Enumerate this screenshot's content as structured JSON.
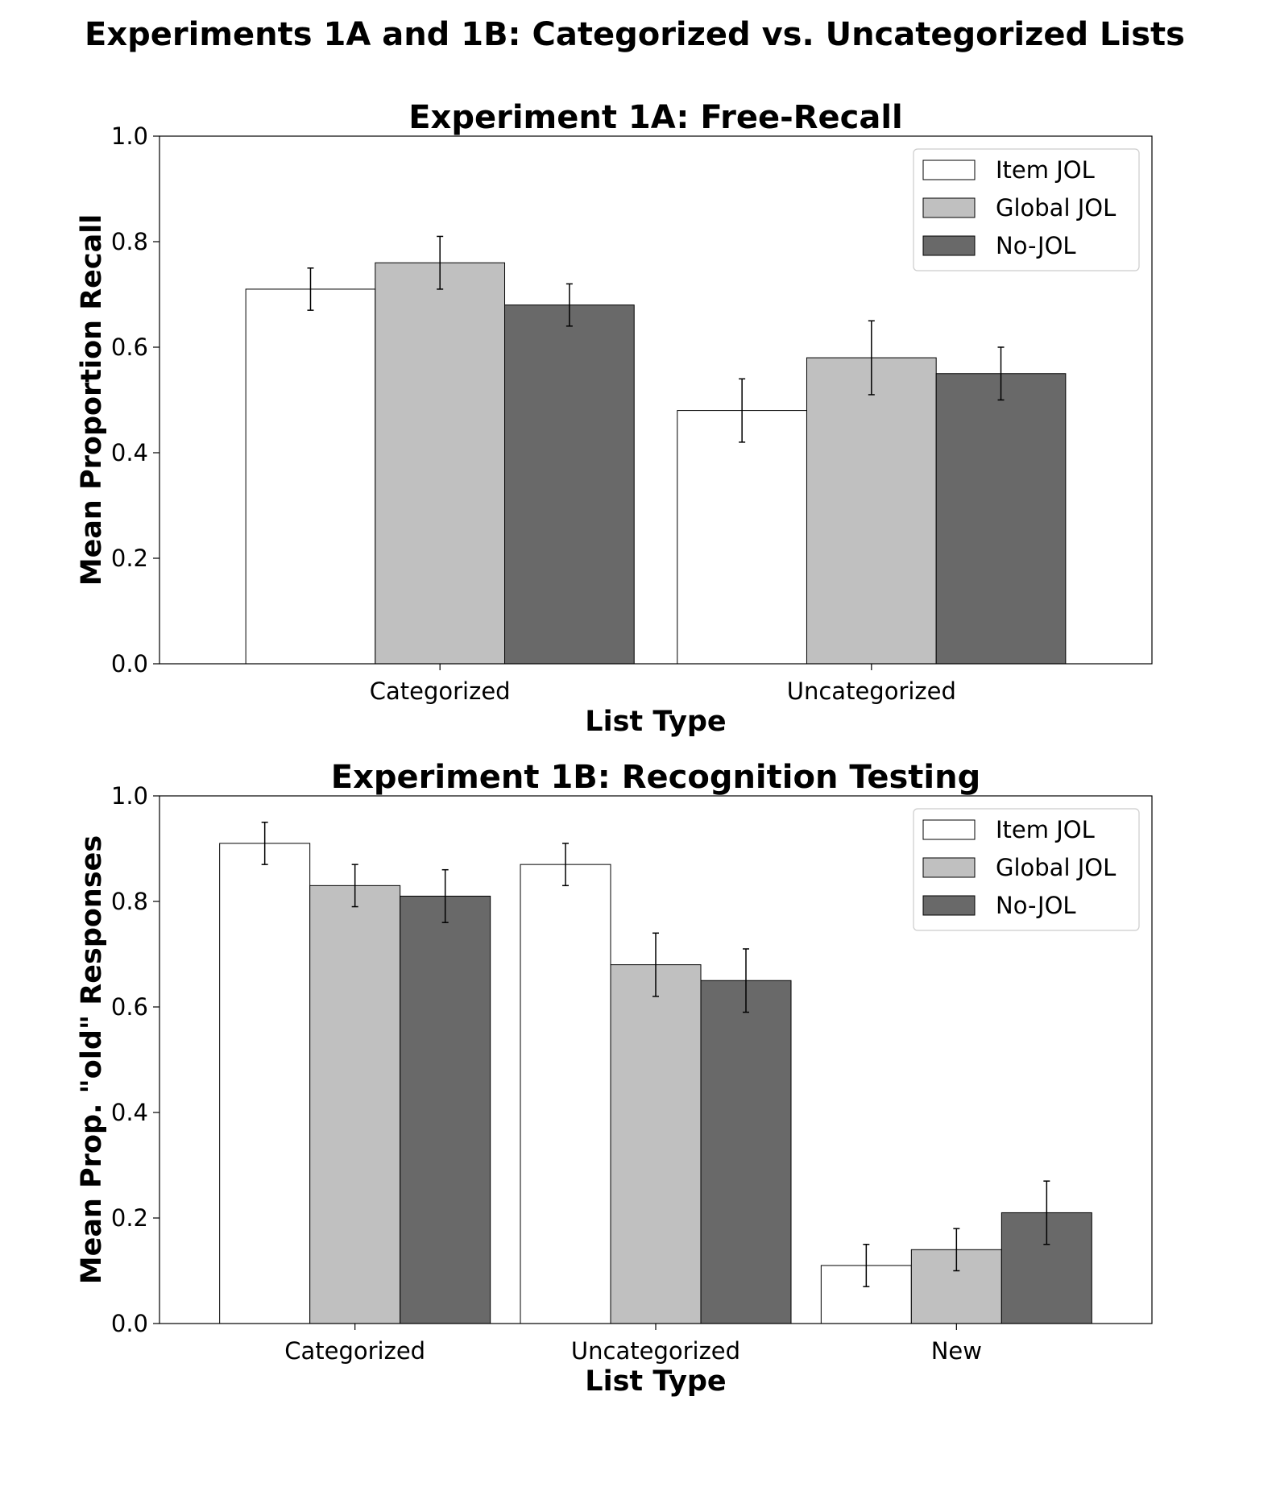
{
  "figure": {
    "title": "Experiments 1A and 1B: Categorized vs. Uncategorized Lists"
  },
  "series_colors": {
    "Item JOL": "#ffffff",
    "Global JOL": "#c0c0c0",
    "No-JOL": "#696969"
  },
  "chart_data": [
    {
      "type": "bar",
      "title": "Experiment 1A: Free-Recall",
      "xlabel": "List Type",
      "ylabel": "Mean Proportion Recall",
      "ylim": [
        0,
        1.0
      ],
      "yticks": [
        "0.0",
        "0.2",
        "0.4",
        "0.6",
        "0.8",
        "1.0"
      ],
      "categories": [
        "Categorized",
        "Uncategorized"
      ],
      "series": [
        {
          "name": "Item JOL",
          "values": [
            0.71,
            0.48
          ],
          "errors": [
            0.04,
            0.06
          ]
        },
        {
          "name": "Global JOL",
          "values": [
            0.76,
            0.58
          ],
          "errors": [
            0.05,
            0.07
          ]
        },
        {
          "name": "No-JOL",
          "values": [
            0.68,
            0.55
          ],
          "errors": [
            0.04,
            0.05
          ]
        }
      ],
      "grid": false,
      "legend": "top-right"
    },
    {
      "type": "bar",
      "title": "Experiment 1B: Recognition Testing",
      "xlabel": "List Type",
      "ylabel": "Mean Prop. \"old\" Responses",
      "ylim": [
        0,
        1.0
      ],
      "yticks": [
        "0.0",
        "0.2",
        "0.4",
        "0.6",
        "0.8",
        "1.0"
      ],
      "categories": [
        "Categorized",
        "Uncategorized",
        "New"
      ],
      "series": [
        {
          "name": "Item JOL",
          "values": [
            0.91,
            0.87,
            0.11
          ],
          "errors": [
            0.04,
            0.04,
            0.04
          ]
        },
        {
          "name": "Global JOL",
          "values": [
            0.83,
            0.68,
            0.14
          ],
          "errors": [
            0.04,
            0.06,
            0.04
          ]
        },
        {
          "name": "No-JOL",
          "values": [
            0.81,
            0.65,
            0.21
          ],
          "errors": [
            0.05,
            0.06,
            0.06
          ]
        }
      ],
      "grid": false,
      "legend": "top-right"
    }
  ]
}
